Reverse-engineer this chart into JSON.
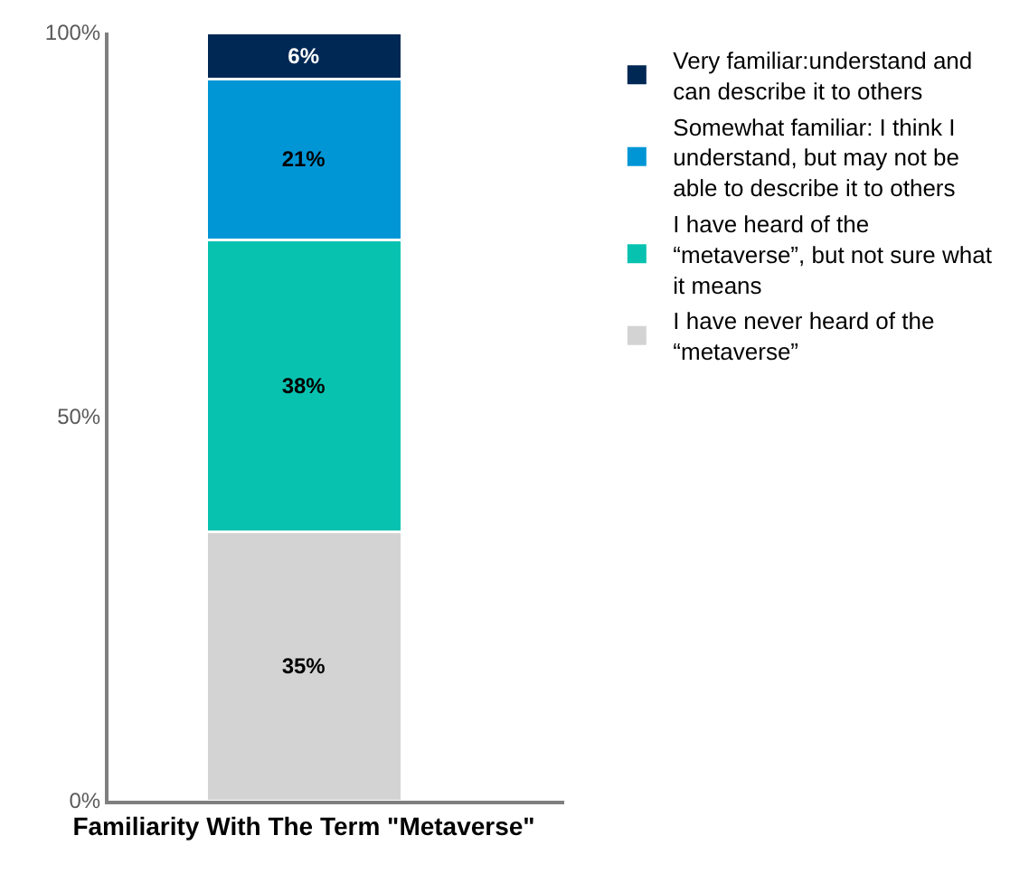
{
  "chart_data": {
    "type": "bar",
    "stacked": true,
    "categories": [
      "Familiarity With The Term \"Metaverse\""
    ],
    "series": [
      {
        "name": "I have never heard of the “metaverse”",
        "color": "#d3d3d3",
        "values": [
          35
        ],
        "value_labels": [
          "35%"
        ]
      },
      {
        "name": "I have heard of the “metaverse”, but not sure what it means",
        "color": "#08c2b0",
        "values": [
          38
        ],
        "value_labels": [
          "38%"
        ]
      },
      {
        "name": "Somewhat familiar: I think I understand, but may not be able to describe it to others",
        "color": "#0096d6",
        "values": [
          21
        ],
        "value_labels": [
          "21%"
        ]
      },
      {
        "name": "Very familiar:understand and can describe it to others",
        "color": "#002855",
        "values": [
          6
        ],
        "value_labels": [
          "6%"
        ]
      }
    ],
    "ylim": [
      0,
      100
    ],
    "yticks": [
      {
        "value": 0,
        "label": "0%"
      },
      {
        "value": 50,
        "label": "50%"
      },
      {
        "value": 100,
        "label": "100%"
      }
    ],
    "legend": "right"
  }
}
